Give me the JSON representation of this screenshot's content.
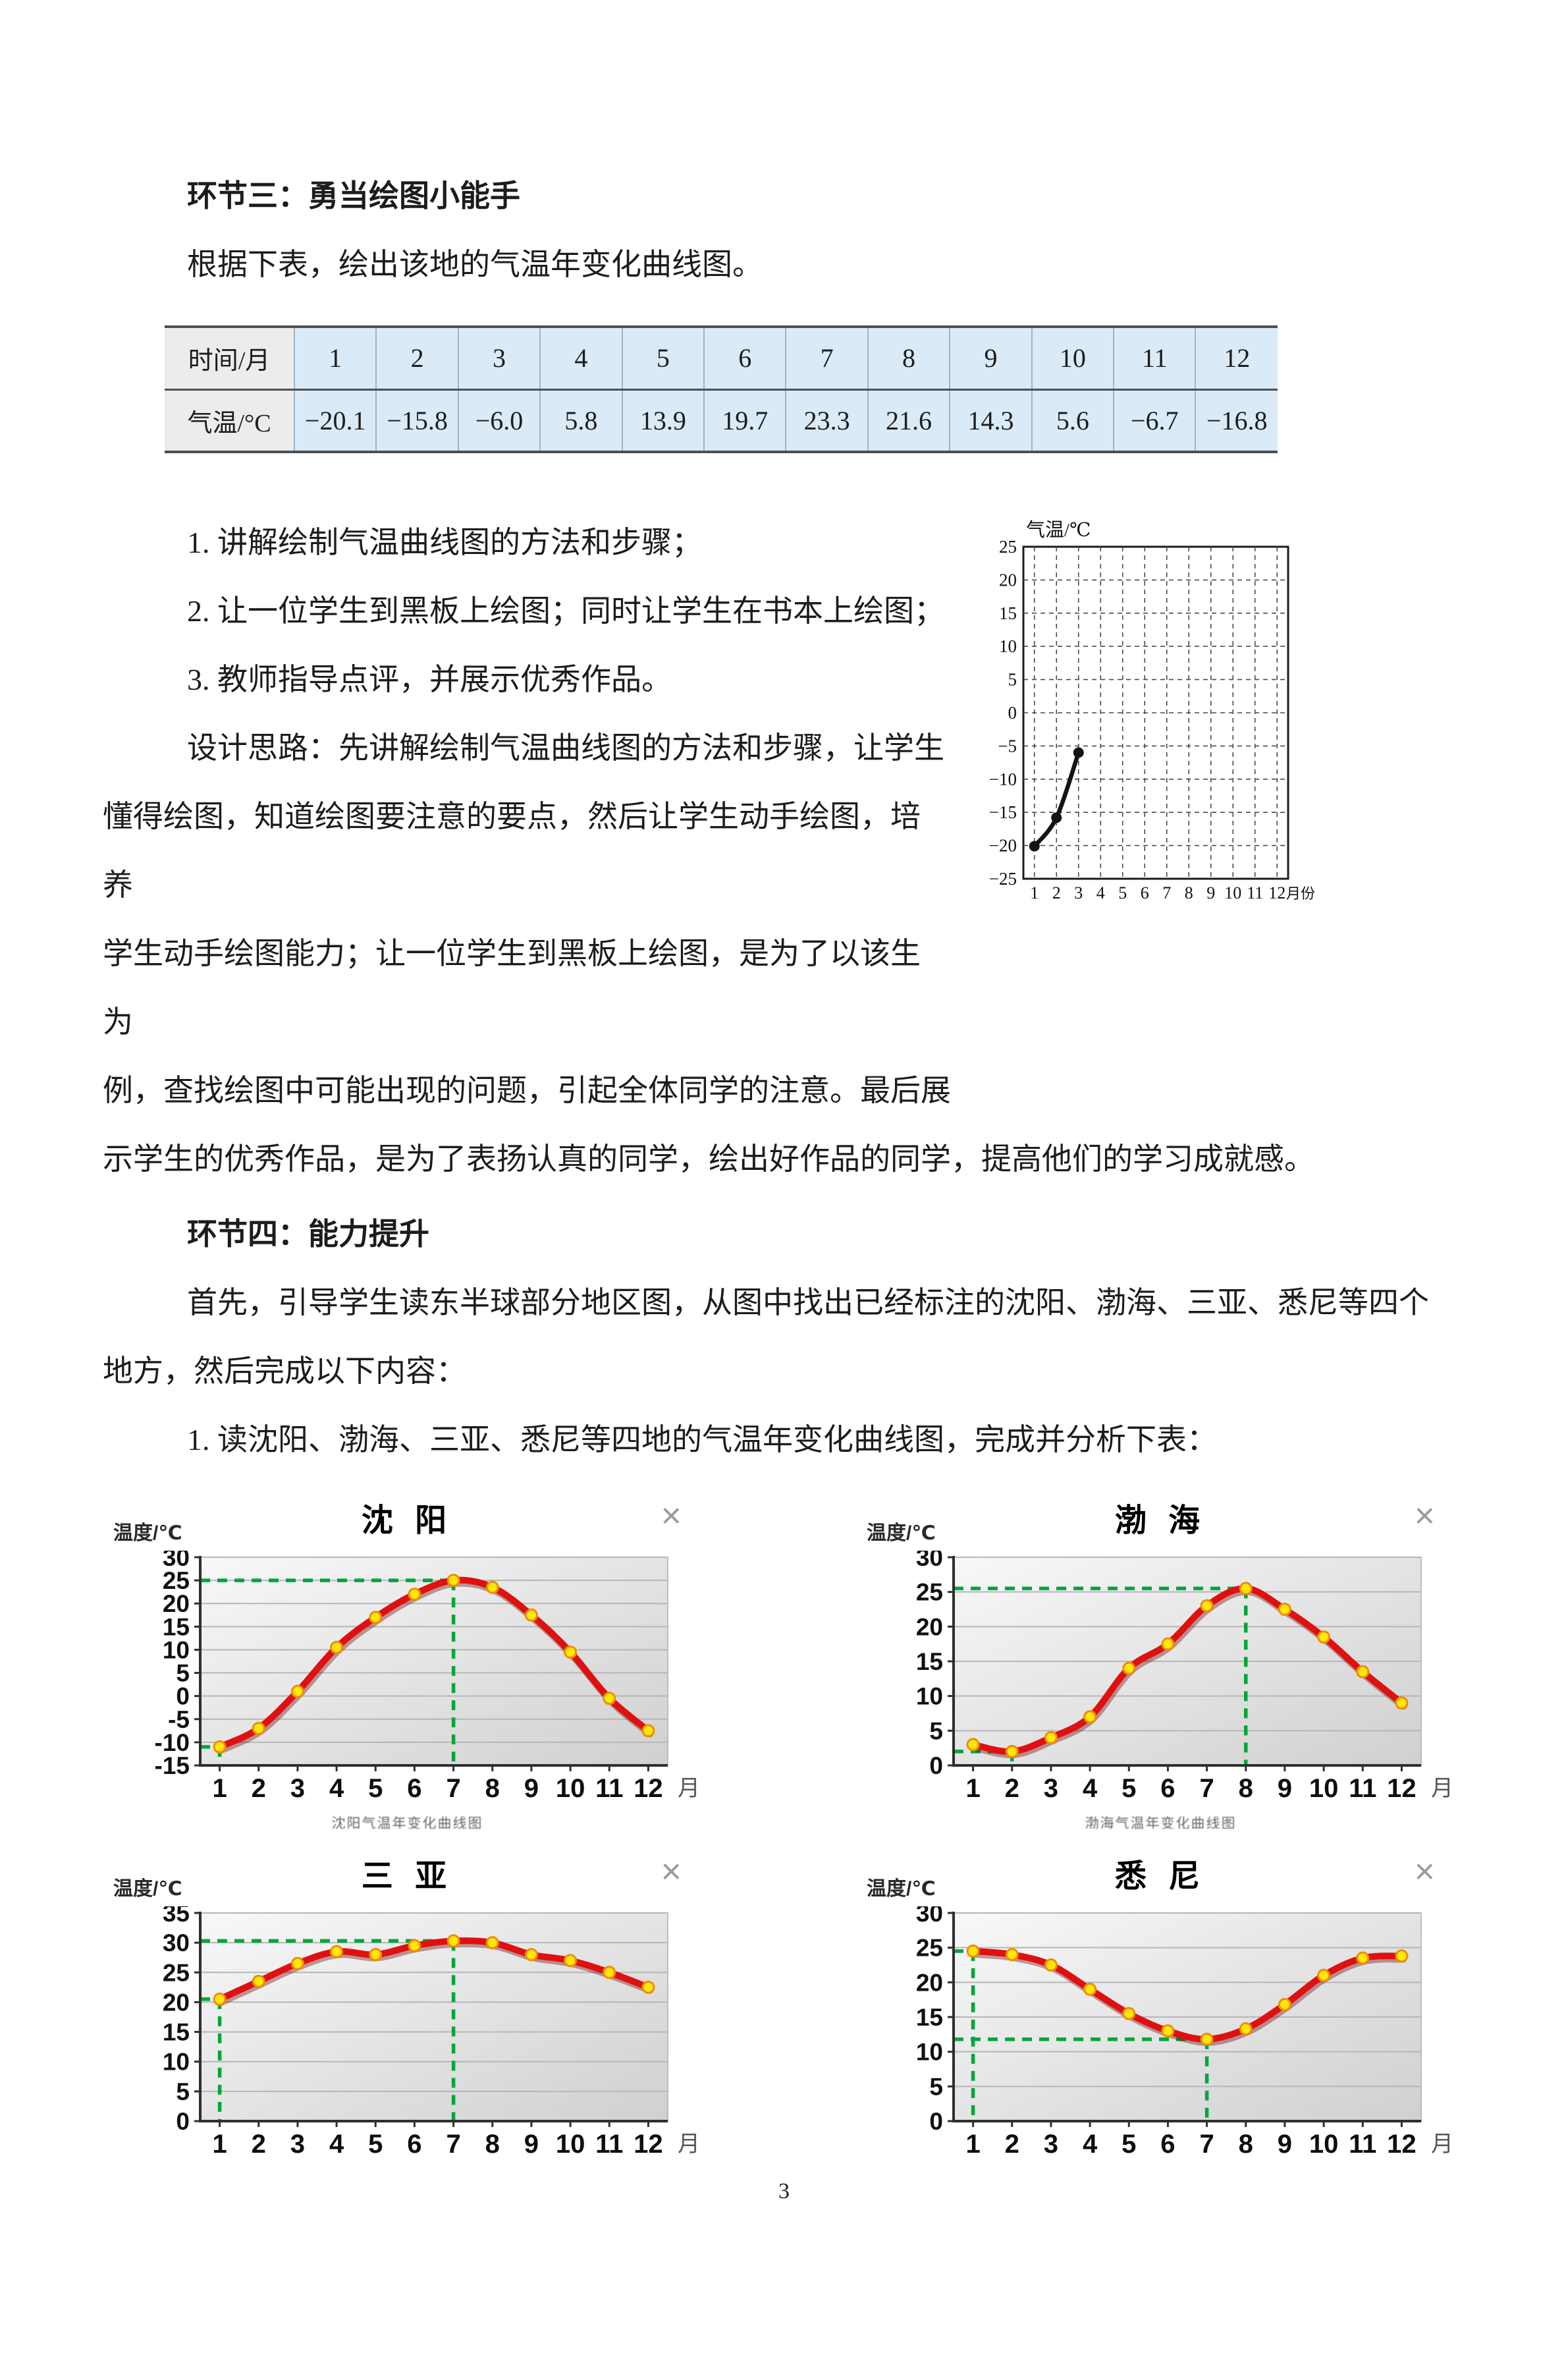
{
  "page": {
    "number": "3"
  },
  "icons": {
    "close": "×"
  },
  "colors": {
    "curve_red": "#e01010",
    "marker_yellow": "#ffe609",
    "marker_edge": "#ef8d05",
    "guide_green": "#00a63c",
    "table_cell_blue": "#daeaf7",
    "table_label_gray": "#ececec"
  },
  "section3": {
    "heading": "环节三：勇当绘图小能手",
    "intro": "根据下表，绘出该地的气温年变化曲线图。",
    "steps": [
      "1. 讲解绘制气温曲线图的方法和步骤；",
      "2. 让一位学生到黑板上绘图；同时让学生在书本上绘图；",
      "3. 教师指导点评，并展示优秀作品。"
    ],
    "design_lines": [
      "设计思路：先讲解绘制气温曲线图的方法和步骤，让学生",
      "懂得绘图，知道绘图要注意的要点，然后让学生动手绘图，培养",
      "学生动手绘图能力；让一位学生到黑板上绘图，是为了以该生为",
      "例，查找绘图中可能出现的问题，引起全体同学的注意。最后展",
      "示学生的优秀作品，是为了表扬认真的同学，绘出好作品的同学，提高他们的学习成就感。"
    ]
  },
  "table": {
    "row1_label": "时间/月",
    "row2_label": "气温/°C",
    "months": [
      "1",
      "2",
      "3",
      "4",
      "5",
      "6",
      "7",
      "8",
      "9",
      "10",
      "11",
      "12"
    ],
    "temps": [
      "−20.1",
      "−15.8",
      "−6.0",
      "5.8",
      "13.9",
      "19.7",
      "23.3",
      "21.6",
      "14.3",
      "5.6",
      "−6.7",
      "−16.8"
    ]
  },
  "section4": {
    "heading": "环节四：能力提升",
    "para_lines": [
      "首先，引导学生读东半球部分地区图，从图中找出已经标注的沈阳、渤海、三亚、悉尼等四个",
      "地方，然后完成以下内容："
    ],
    "task": "1. 读沈阳、渤海、三亚、悉尼等四地的气温年变化曲线图，完成并分析下表："
  },
  "chart_data": [
    {
      "id": "practice",
      "type": "line",
      "title": "气温/℃",
      "xlabel": "月份",
      "x": [
        1,
        2,
        3,
        4,
        5,
        6,
        7,
        8,
        9,
        10,
        11,
        12
      ],
      "series": [
        {
          "name": "气温",
          "values": [
            -20.1,
            -15.8,
            -6.0,
            null,
            null,
            null,
            null,
            null,
            null,
            null,
            null,
            null
          ]
        }
      ],
      "ylim": [
        -25,
        25
      ],
      "ytick_step": 5,
      "grid": "dashed",
      "legend": "none"
    },
    {
      "id": "shenyang",
      "type": "line",
      "title": "沈 阳",
      "ylabel": "温度/℃",
      "xlabel": "月",
      "caption": "沈阳气温年变化曲线图",
      "x": [
        1,
        2,
        3,
        4,
        5,
        6,
        7,
        8,
        9,
        10,
        11,
        12
      ],
      "values": [
        -11,
        -7,
        1,
        10.5,
        17,
        22,
        25,
        23.5,
        17.5,
        9.5,
        -0.5,
        -7.5
      ],
      "ylim": [
        -15,
        30
      ],
      "ytick_step": 5,
      "guides": [
        {
          "x": 7,
          "y": 25
        },
        {
          "x": 1,
          "y": -11
        }
      ],
      "grid": "horizontal",
      "legend": "none"
    },
    {
      "id": "bohai",
      "type": "line",
      "title": "渤 海",
      "ylabel": "温度/℃",
      "xlabel": "月",
      "caption": "渤海气温年变化曲线图",
      "x": [
        1,
        2,
        3,
        4,
        5,
        6,
        7,
        8,
        9,
        10,
        11,
        12
      ],
      "values": [
        3,
        2,
        4,
        7,
        14,
        17.5,
        23,
        25.5,
        22.5,
        18.5,
        13.5,
        9
      ],
      "ylim": [
        0,
        30
      ],
      "ytick_step": 5,
      "guides": [
        {
          "x": 8,
          "y": 25.5
        },
        {
          "x": 2,
          "y": 2
        }
      ],
      "grid": "horizontal",
      "legend": "none"
    },
    {
      "id": "sanya",
      "type": "line",
      "title": "三 亚",
      "ylabel": "温度/℃",
      "xlabel": "月",
      "caption": "",
      "x": [
        1,
        2,
        3,
        4,
        5,
        6,
        7,
        8,
        9,
        10,
        11,
        12
      ],
      "values": [
        20.5,
        23.5,
        26.5,
        28.5,
        28,
        29.5,
        30.3,
        30,
        28,
        27,
        25,
        22.5
      ],
      "ylim": [
        0,
        35
      ],
      "ytick_step": 5,
      "guides": [
        {
          "x": 7,
          "y": 30.3
        },
        {
          "x": 1,
          "y": 20.5
        }
      ],
      "grid": "horizontal",
      "legend": "none"
    },
    {
      "id": "xini",
      "type": "line",
      "title": "悉 尼",
      "ylabel": "温度/℃",
      "xlabel": "月",
      "caption": "",
      "x": [
        1,
        2,
        3,
        4,
        5,
        6,
        7,
        8,
        9,
        10,
        11,
        12
      ],
      "values": [
        24.5,
        24,
        22.5,
        19,
        15.5,
        13,
        11.8,
        13.3,
        16.8,
        21,
        23.5,
        23.8
      ],
      "ylim": [
        0,
        30
      ],
      "ytick_step": 5,
      "guides": [
        {
          "x": 1,
          "y": 24.5
        },
        {
          "x": 7,
          "y": 11.8
        }
      ],
      "grid": "horizontal",
      "legend": "none"
    }
  ]
}
